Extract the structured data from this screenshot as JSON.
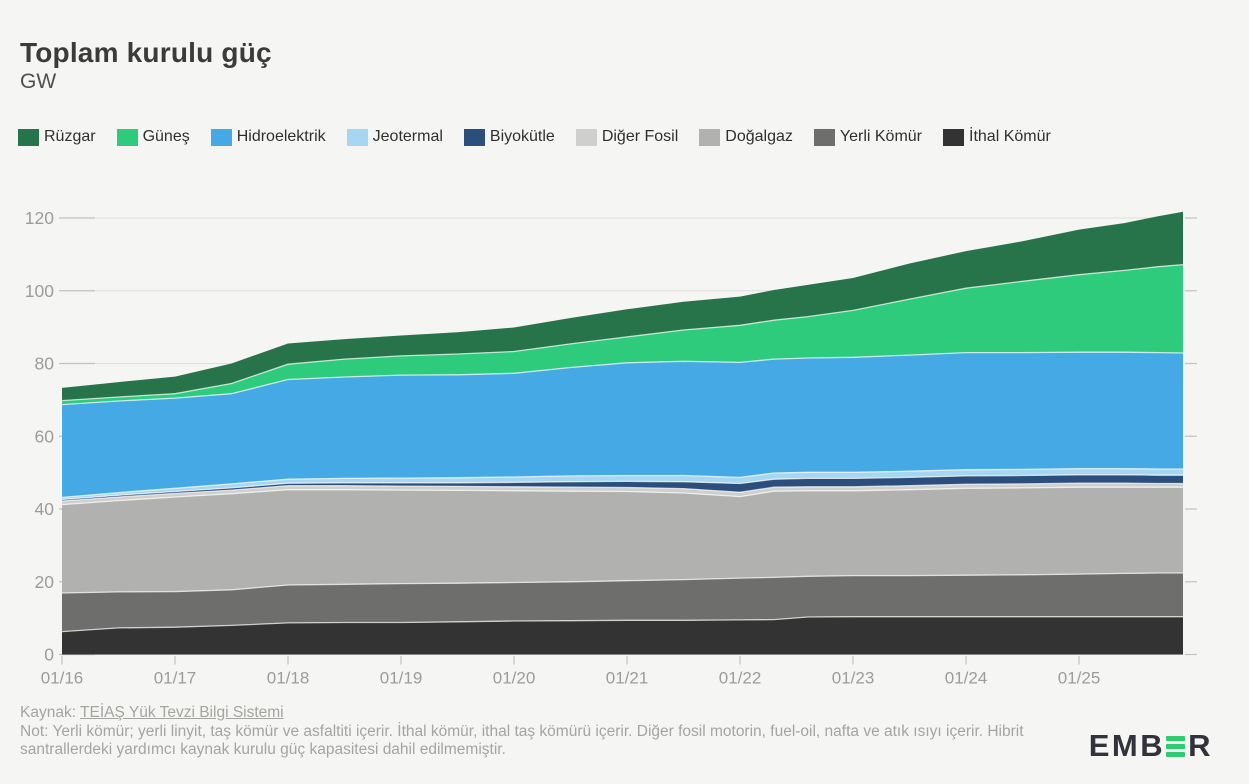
{
  "header": {
    "title": "Toplam kurulu güç",
    "unit": "GW"
  },
  "legend": [
    {
      "label": "Rüzgar",
      "color": "#27744A"
    },
    {
      "label": "Güneş",
      "color": "#2FCB7D"
    },
    {
      "label": "Hidroelektrik",
      "color": "#45A9E5"
    },
    {
      "label": "Jeotermal",
      "color": "#A7D6F2"
    },
    {
      "label": "Biyokütle",
      "color": "#2C4E7C"
    },
    {
      "label": "Diğer Fosil",
      "color": "#CFCFCD"
    },
    {
      "label": "Doğalgaz",
      "color": "#B1B1AF"
    },
    {
      "label": "Yerli Kömür",
      "color": "#6E6E6C"
    },
    {
      "label": "İthal Kömür",
      "color": "#333333"
    }
  ],
  "chart_data": {
    "type": "area",
    "stacked": true,
    "title": "Toplam kurulu güç",
    "ylabel": "GW",
    "xlabel": "",
    "grid": true,
    "legend_position": "top",
    "ylim": [
      0,
      130
    ],
    "yticks": [
      0,
      20,
      40,
      60,
      80,
      100,
      120
    ],
    "ytick_labels": [
      "0",
      "20",
      "40",
      "60",
      "80",
      "100",
      "120"
    ],
    "xtick_years": [
      2016,
      2017,
      2018,
      2019,
      2020,
      2021,
      2022,
      2023,
      2024,
      2025
    ],
    "xtick_labels": [
      "01/16",
      "01/17",
      "01/18",
      "01/19",
      "01/20",
      "01/21",
      "01/22",
      "01/23",
      "01/24",
      "01/25"
    ],
    "x_range": [
      2016.0,
      2025.92
    ],
    "x": [
      2016.0,
      2016.5,
      2017.0,
      2017.5,
      2018.0,
      2018.5,
      2019.0,
      2019.5,
      2020.0,
      2020.5,
      2021.0,
      2021.5,
      2022.0,
      2022.3,
      2022.6,
      2023.0,
      2023.5,
      2024.0,
      2024.5,
      2025.0,
      2025.4,
      2025.7,
      2025.92
    ],
    "series": [
      {
        "name": "İthal Kömür",
        "color": "#333333",
        "values": [
          6.3,
          7.3,
          7.5,
          8.0,
          8.7,
          8.8,
          8.8,
          9.0,
          9.2,
          9.3,
          9.4,
          9.4,
          9.5,
          9.6,
          10.3,
          10.4,
          10.4,
          10.4,
          10.4,
          10.4,
          10.4,
          10.4,
          10.4
        ]
      },
      {
        "name": "Yerli Kömür",
        "color": "#6E6E6C",
        "values": [
          10.6,
          9.9,
          9.8,
          9.8,
          10.4,
          10.5,
          10.7,
          10.6,
          10.6,
          10.7,
          10.9,
          11.2,
          11.5,
          11.6,
          11.2,
          11.3,
          11.3,
          11.4,
          11.5,
          11.7,
          11.9,
          12.0,
          12.0
        ]
      },
      {
        "name": "Doğalgaz",
        "color": "#B1B1AF",
        "values": [
          24.3,
          25.1,
          26.0,
          26.4,
          26.2,
          26.0,
          25.7,
          25.5,
          25.2,
          24.9,
          24.5,
          23.8,
          22.4,
          23.7,
          23.5,
          23.3,
          23.6,
          23.9,
          23.9,
          23.9,
          23.7,
          23.6,
          23.6
        ]
      },
      {
        "name": "Diğer Fosil",
        "color": "#CFCFCD",
        "values": [
          1.0,
          1.0,
          1.0,
          1.0,
          1.1,
          1.1,
          1.1,
          1.1,
          1.1,
          1.1,
          1.1,
          1.2,
          1.2,
          1.1,
          1.1,
          1.1,
          1.1,
          1.1,
          1.1,
          1.1,
          1.1,
          1.0,
          1.0
        ]
      },
      {
        "name": "Biyokütle",
        "color": "#2C4E7C",
        "values": [
          0.4,
          0.5,
          0.5,
          0.6,
          0.7,
          0.8,
          0.9,
          1.0,
          1.2,
          1.5,
          1.7,
          1.9,
          2.4,
          2.2,
          2.3,
          2.3,
          2.3,
          2.3,
          2.3,
          2.3,
          2.3,
          2.3,
          2.3
        ]
      },
      {
        "name": "Jeotermal",
        "color": "#A7D6F2",
        "values": [
          0.6,
          0.7,
          0.9,
          1.1,
          1.1,
          1.2,
          1.3,
          1.4,
          1.5,
          1.6,
          1.6,
          1.7,
          1.7,
          1.7,
          1.7,
          1.7,
          1.7,
          1.7,
          1.7,
          1.7,
          1.7,
          1.7,
          1.7
        ]
      },
      {
        "name": "Hidroelektrik",
        "color": "#45A9E5",
        "values": [
          25.5,
          25.2,
          24.8,
          24.8,
          27.4,
          27.9,
          28.3,
          28.3,
          28.5,
          29.8,
          31.0,
          31.4,
          31.6,
          31.3,
          31.4,
          31.6,
          31.9,
          32.2,
          32.1,
          32.0,
          32.0,
          32.0,
          31.9
        ]
      },
      {
        "name": "Güneş",
        "color": "#2FCB7D",
        "values": [
          1.1,
          1.1,
          1.2,
          2.8,
          4.2,
          4.9,
          5.3,
          5.7,
          6.0,
          6.5,
          7.1,
          8.6,
          10.2,
          10.7,
          11.4,
          12.9,
          15.4,
          17.7,
          19.6,
          21.3,
          22.5,
          23.6,
          24.3
        ]
      },
      {
        "name": "Rüzgar",
        "color": "#27744A",
        "values": [
          3.5,
          4.1,
          4.7,
          5.5,
          5.7,
          5.5,
          5.6,
          6.0,
          6.6,
          7.1,
          7.6,
          7.8,
          7.9,
          8.3,
          8.7,
          8.9,
          9.8,
          10.2,
          11.0,
          12.4,
          13.0,
          13.9,
          14.5
        ]
      }
    ]
  },
  "footer": {
    "source_prefix": "Kaynak: ",
    "source_link": "TEİAŞ Yük Tevzi Bilgi Sistemi",
    "note": "Not: Yerli kömür; yerli linyit, taş kömür ve asfaltiti içerir. İthal kömür, ithal taş kömürü içerir. Diğer fosil motorin, fuel-oil, nafta ve atık ısıyı içerir. Hibrit santrallerdeki yardımcı kaynak kurulu güç kapasitesi dahil edilmemiştir."
  },
  "logo": {
    "prefix": "EMB",
    "suffix": "R",
    "accent_color": "#2FCB71",
    "text_color": "#32323A"
  },
  "colors": {
    "background": "#F5F5F3",
    "gridline": "#DEDEDC",
    "tick": "#C2C2C0",
    "axis_label": "#9C9C9A"
  }
}
